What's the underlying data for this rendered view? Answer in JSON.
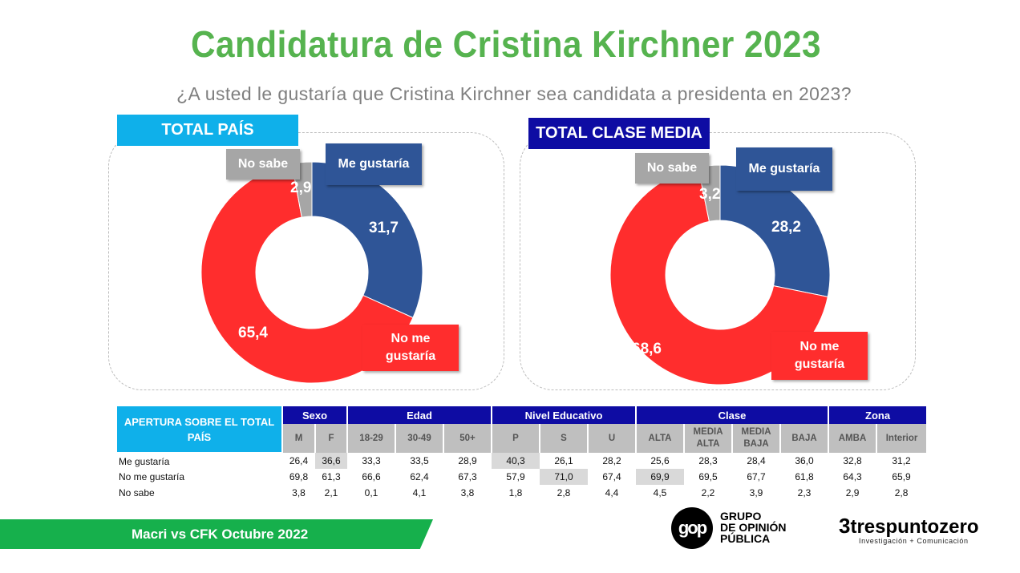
{
  "title": "Candidatura de Cristina Kirchner 2023",
  "subtitle": "¿A usted le gustaría que Cristina Kirchner sea candidata a presidenta en 2023?",
  "colors": {
    "me_gustaria": "#2f5597",
    "no_me_gustaria": "#ff2d2d",
    "no_sabe": "#a6a6a6",
    "total_pais_tag": "#0fb0ea",
    "clase_media_tag": "#0e0ca3",
    "title": "#56b34f",
    "footer": "#16b04c"
  },
  "chart_data": [
    {
      "type": "pie",
      "title": "TOTAL PAÍS",
      "donut": true,
      "categories": [
        "Me gustaría",
        "No me gustaría",
        "No sabe"
      ],
      "values": [
        31.7,
        65.4,
        2.9
      ],
      "value_labels": [
        "31,7",
        "65,4",
        "2,9"
      ]
    },
    {
      "type": "pie",
      "title": "TOTAL CLASE MEDIA",
      "donut": true,
      "categories": [
        "Me gustaría",
        "No me gustaría",
        "No sabe"
      ],
      "values": [
        28.2,
        68.6,
        3.2
      ],
      "value_labels": [
        "28,2",
        "68,6",
        "3,2"
      ]
    }
  ],
  "legend_labels": {
    "me": "Me gustaría",
    "no_me": "No me gustaría",
    "no_sabe": "No sabe"
  },
  "table": {
    "header": "APERTURA SOBRE EL TOTAL PAÍS",
    "groups": [
      {
        "label": "Sexo",
        "span": 2
      },
      {
        "label": "Edad",
        "span": 3
      },
      {
        "label": "Nivel Educativo",
        "span": 3
      },
      {
        "label": "Clase",
        "span": 4
      },
      {
        "label": "Zona",
        "span": 2
      }
    ],
    "columns": [
      "M",
      "F",
      "18-29",
      "30-49",
      "50+",
      "P",
      "S",
      "U",
      "ALTA",
      "MEDIA ALTA",
      "MEDIA BAJA",
      "BAJA",
      "AMBA",
      "Interior"
    ],
    "rows": [
      {
        "label": "Me gustaría",
        "values": [
          "26,4",
          "36,6",
          "33,3",
          "33,5",
          "28,9",
          "40,3",
          "26,1",
          "28,2",
          "25,6",
          "28,3",
          "28,4",
          "36,0",
          "32,8",
          "31,2"
        ],
        "highlight": [
          1,
          5
        ]
      },
      {
        "label": "No me gustaría",
        "values": [
          "69,8",
          "61,3",
          "66,6",
          "62,4",
          "67,3",
          "57,9",
          "71,0",
          "67,4",
          "69,9",
          "69,5",
          "67,7",
          "61,8",
          "64,3",
          "65,9"
        ],
        "highlight": [
          6,
          8
        ]
      },
      {
        "label": "No sabe",
        "values": [
          "3,8",
          "2,1",
          "0,1",
          "4,1",
          "3,8",
          "1,8",
          "2,8",
          "4,4",
          "4,5",
          "2,2",
          "3,9",
          "2,3",
          "2,9",
          "2,8"
        ],
        "highlight": []
      }
    ]
  },
  "footer": "Macri vs CFK Octubre 2022",
  "logos": {
    "gop_mark": "GOP",
    "gop_name": [
      "GRUPO",
      "DE OPINIÓN",
      "PÚBLICA"
    ],
    "tpz_name": "trespuntozero",
    "tpz_tagline": "Investigación + Comunicación"
  }
}
